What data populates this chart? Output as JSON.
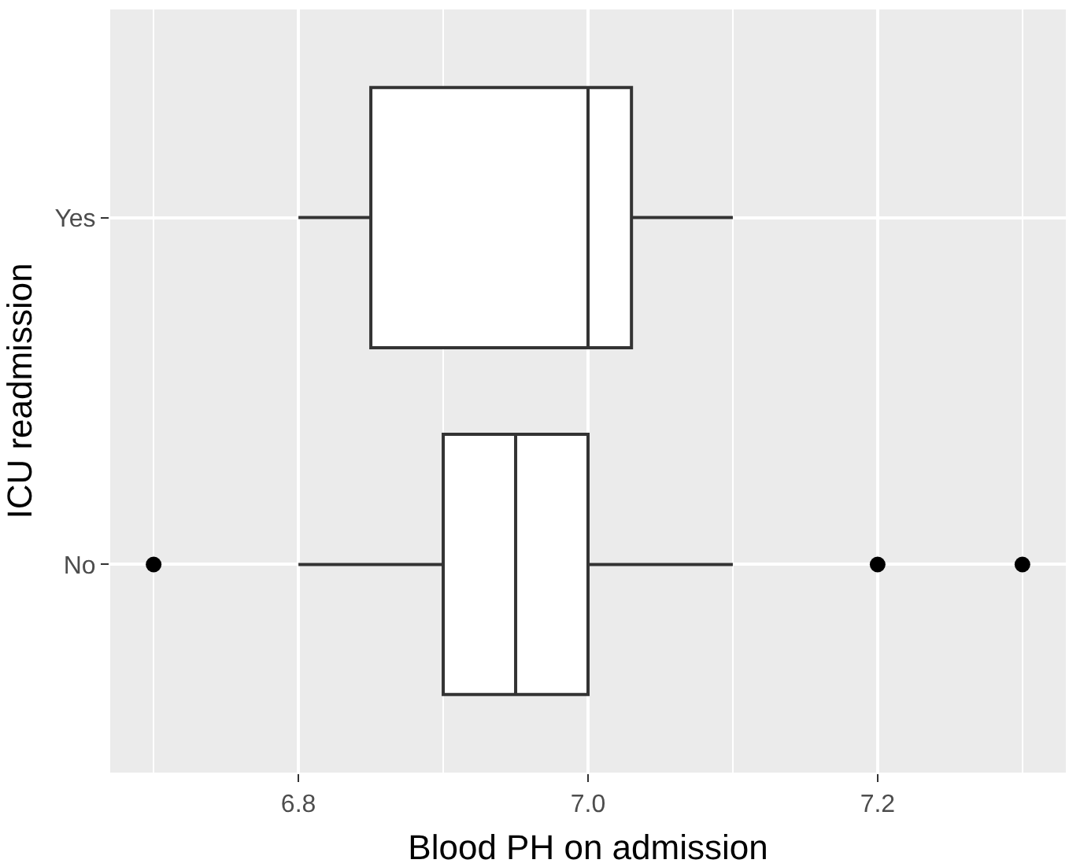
{
  "chart_data": {
    "type": "box",
    "orientation": "horizontal",
    "xlabel": "Blood PH on admission",
    "ylabel": "ICU readmission",
    "categories": [
      "Yes",
      "No"
    ],
    "boxes": [
      {
        "low": 6.8,
        "q1": 6.85,
        "median": 7.0,
        "q3": 7.03,
        "high": 7.1
      },
      {
        "low": 6.8,
        "q1": 6.9,
        "median": 6.95,
        "q3": 7.0,
        "high": 7.1,
        "outliers": [
          6.7,
          7.2,
          7.3
        ]
      }
    ],
    "color": "#ffffff",
    "xlim": [
      6.67,
      7.33
    ],
    "xticks": [
      6.8,
      {
        "value": 7,
        "label": "7.0"
      },
      7.2
    ],
    "grid": true
  }
}
